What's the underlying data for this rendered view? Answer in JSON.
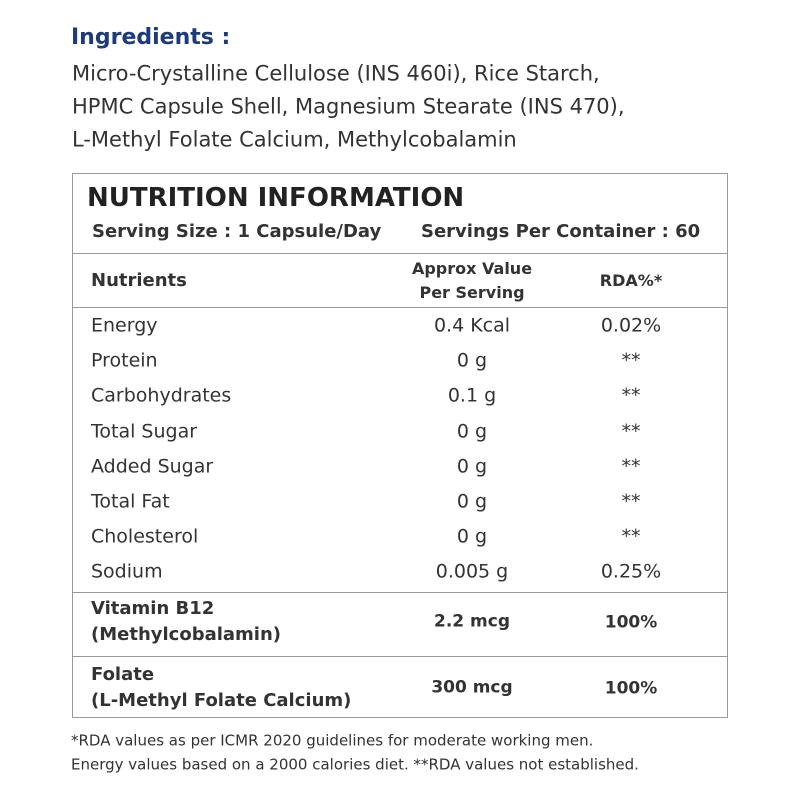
{
  "ingredients": {
    "title": "Ingredients :",
    "lines": [
      "Micro-Crystalline Cellulose (INS 460i), Rice Starch,",
      "HPMC Capsule Shell, Magnesium Stearate (INS 470),",
      "L-Methyl Folate Calcium, Methylcobalamin"
    ]
  },
  "nutrition": {
    "title": "NUTRITION INFORMATION",
    "serving_size": "Serving Size : 1 Capsule/Day",
    "servings_per_container": "Servings Per Container : 60",
    "table": {
      "header": [
        [
          "Nutrients"
        ],
        [
          "Approx Value",
          "Per Serving"
        ],
        [
          "RDA%*"
        ]
      ],
      "rows": [
        [
          "Energy",
          "0.4 Kcal",
          "0.02%"
        ],
        [
          "Protein",
          "0 g",
          "**"
        ],
        [
          "Carbohydrates",
          "0.1 g",
          "**"
        ],
        [
          "Total Sugar",
          "0 g",
          "**"
        ],
        [
          "Added Sugar",
          "0 g",
          "**"
        ],
        [
          "Total Fat",
          "0 g",
          "**"
        ],
        [
          "Cholesterol",
          "0 g",
          "**"
        ],
        [
          "Sodium",
          "0.005 g",
          "0.25%"
        ]
      ],
      "highlight_rows": [
        [
          [
            "Vitamin B12",
            "(Methylcobalamin)"
          ],
          "2.2 mcg",
          "100%"
        ],
        [
          [
            "Folate",
            "(L-Methyl Folate Calcium)"
          ],
          "300 mcg",
          "100%"
        ]
      ]
    }
  },
  "footnotes": [
    "*RDA values as per ICMR 2020 guidelines for moderate working men.",
    "Energy values based on a 2000 calories diet. **RDA values not established."
  ]
}
